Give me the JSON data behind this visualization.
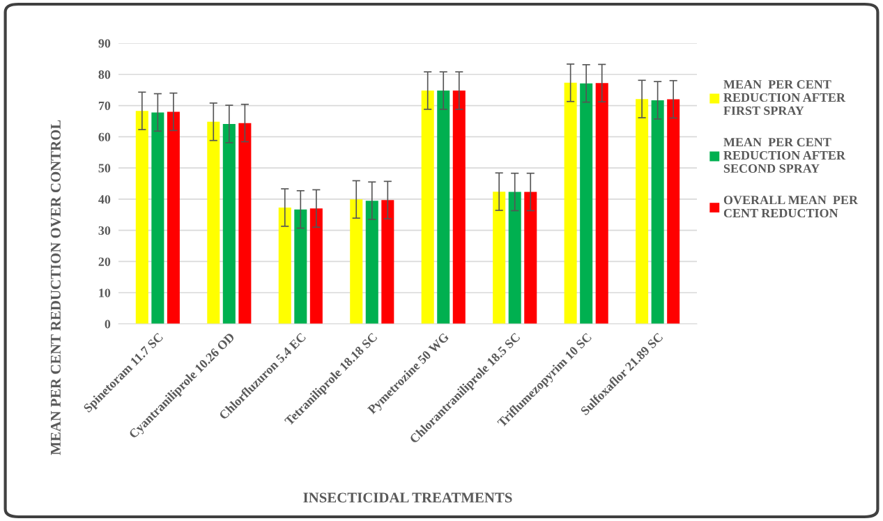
{
  "chart_data": {
    "type": "bar",
    "xlabel": "INSECTICIDAL TREATMENTS",
    "ylabel": "MEAN PER CENT REDUCTION OVER CONTROL",
    "categories": [
      "Spinetoram 11.7 SC",
      "Cyantraniliprole 10.26 OD",
      "Chlorfluzuron 5.4 EC",
      "Tetraniliprole 18.18 SC",
      "Pymetrozine 50 WG",
      "Chlorantraniliprole 18.5 SC",
      "Triflumezopyrim 10 SC",
      "Sulfoxaflor 21.89 SC"
    ],
    "series": [
      {
        "name": "MEAN  PER CENT REDUCTION AFTER FIRST SPRAY",
        "color": "#ffff00",
        "values": [
          68.3,
          64.8,
          37.3,
          39.9,
          74.8,
          42.4,
          77.3,
          72.1
        ],
        "errors": [
          6,
          6,
          6,
          6,
          6,
          6,
          6,
          6
        ]
      },
      {
        "name": "MEAN  PER CENT REDUCTION AFTER SECOND SPRAY",
        "color": "#00b050",
        "values": [
          67.8,
          64.1,
          36.7,
          39.5,
          74.8,
          42.3,
          77.1,
          71.7
        ],
        "errors": [
          6,
          6,
          6,
          6,
          6,
          6,
          6,
          6
        ]
      },
      {
        "name": "OVERALL MEAN  PER CENT REDUCTION",
        "color": "#ff0000",
        "values": [
          68.0,
          64.4,
          37.0,
          39.7,
          74.8,
          42.3,
          77.2,
          72.0
        ],
        "errors": [
          6,
          6,
          6,
          6,
          6,
          6,
          6,
          6
        ]
      }
    ],
    "ylim": [
      0,
      90
    ],
    "yticks": [
      0,
      10,
      20,
      30,
      40,
      50,
      60,
      70,
      80,
      90
    ],
    "grid": "y",
    "legend": "right"
  }
}
